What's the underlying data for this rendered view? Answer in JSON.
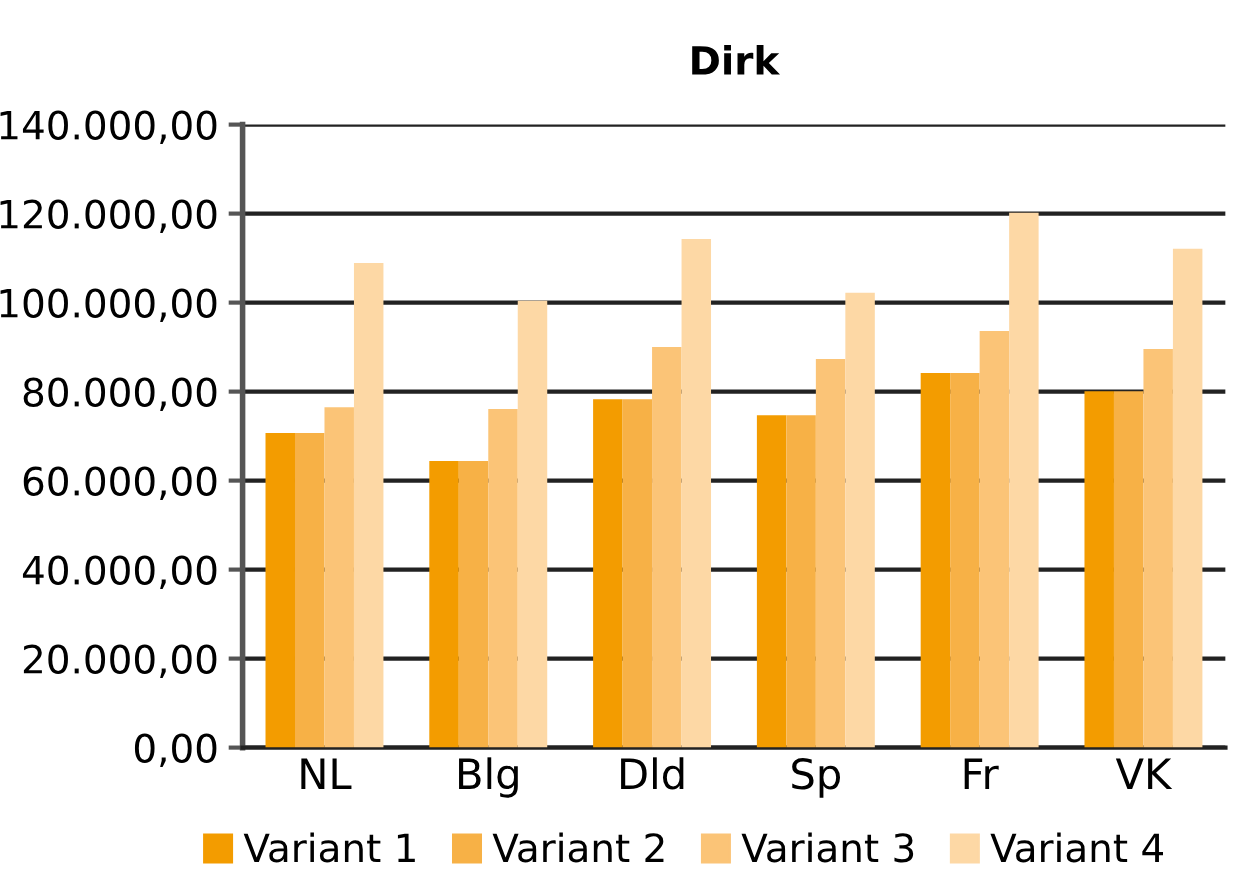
{
  "chart_data": {
    "type": "bar",
    "title": "Dirk",
    "categories": [
      "NL",
      "Blg",
      "Dld",
      "Sp",
      "Fr",
      "VK"
    ],
    "series": [
      {
        "name": "Variant 1",
        "color": "#f39c00",
        "values": [
          70700,
          64400,
          78300,
          74700,
          84200,
          80100
        ]
      },
      {
        "name": "Variant 2",
        "color": "#f7b146",
        "values": [
          70700,
          64400,
          78300,
          74700,
          84200,
          80100
        ]
      },
      {
        "name": "Variant 3",
        "color": "#fbc477",
        "values": [
          76500,
          76100,
          90000,
          87300,
          93600,
          89600
        ]
      },
      {
        "name": "Variant 4",
        "color": "#fdd8a5",
        "values": [
          108900,
          100400,
          114300,
          102200,
          120200,
          112100
        ]
      }
    ],
    "ylim": [
      0,
      140000
    ],
    "yticks": [
      {
        "value": 0,
        "label": "0,00"
      },
      {
        "value": 20000,
        "label": "20.000,00"
      },
      {
        "value": 40000,
        "label": "40.000,00"
      },
      {
        "value": 60000,
        "label": "60.000,00"
      },
      {
        "value": 80000,
        "label": "80.000,00"
      },
      {
        "value": 100000,
        "label": "100.000,00"
      },
      {
        "value": 120000,
        "label": "120.000,00"
      },
      {
        "value": 140000,
        "label": "140.000,00"
      }
    ],
    "grid": "y",
    "legend": "bottom"
  }
}
